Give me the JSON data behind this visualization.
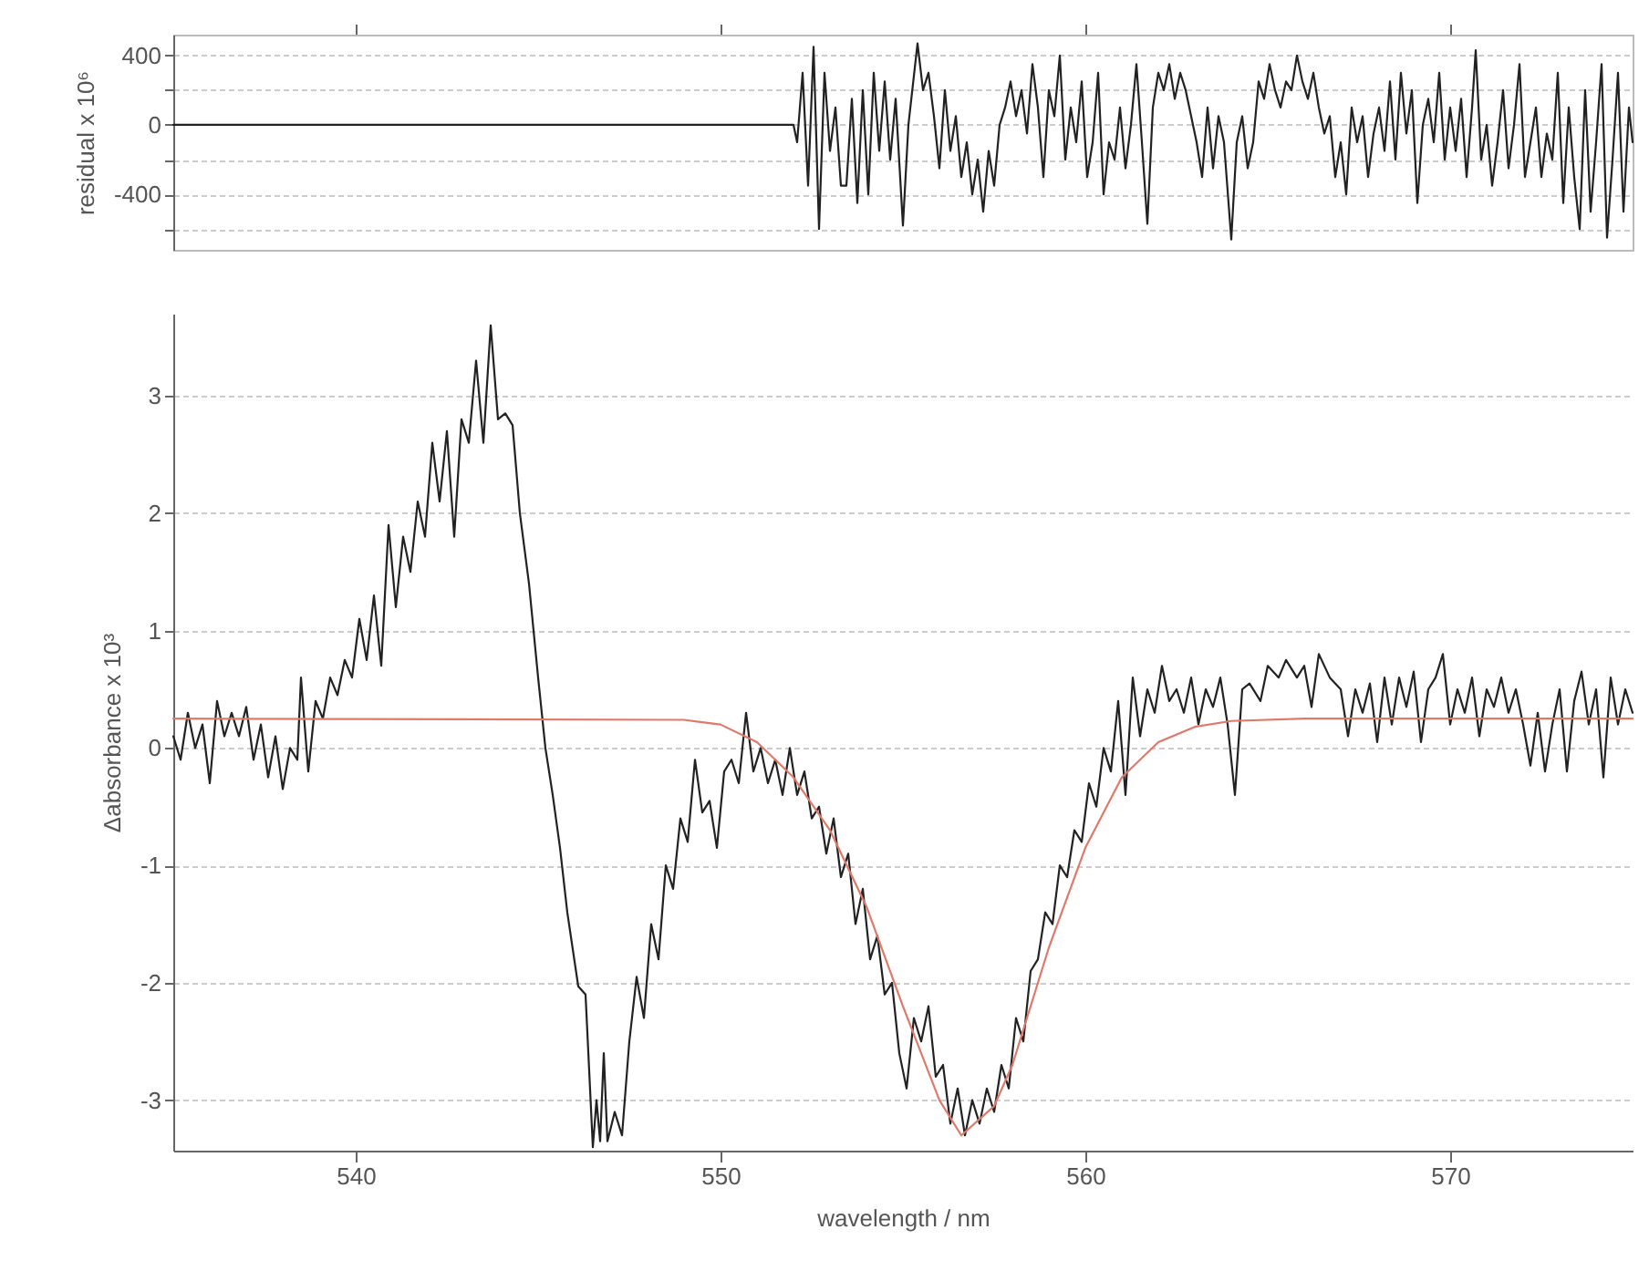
{
  "chart_data": [
    {
      "type": "line",
      "ylabel": "residual x 10⁶",
      "xlim": [
        535,
        575
      ],
      "xticks": [
        540,
        550,
        560,
        570
      ],
      "ylim": [
        -720,
        520
      ],
      "yticks": [
        {
          "value": -600,
          "label": null
        },
        -400,
        {
          "value": -200,
          "label": null
        },
        0,
        {
          "value": 200,
          "label": null
        },
        400
      ],
      "grid": "y",
      "tick_labels": "y",
      "series": [
        {
          "color": "#222222",
          "x": [
            535,
            552.0,
            552.1,
            552.25,
            552.4,
            552.55,
            552.7,
            552.85,
            553.0,
            553.15,
            553.3,
            553.45,
            553.6,
            553.75,
            553.9,
            554.05,
            554.2,
            554.35,
            554.5,
            554.65,
            554.8,
            555.0,
            555.15,
            555.4,
            555.55,
            555.7,
            555.85,
            556.0,
            556.15,
            556.3,
            556.45,
            556.6,
            556.75,
            556.9,
            557.05,
            557.2,
            557.35,
            557.5,
            557.65,
            557.8,
            557.95,
            558.1,
            558.25,
            558.4,
            558.55,
            558.7,
            558.85,
            559.0,
            559.15,
            559.3,
            559.45,
            559.6,
            559.75,
            559.9,
            560.05,
            560.2,
            560.35,
            560.5,
            560.65,
            560.8,
            560.95,
            561.1,
            561.25,
            561.4,
            561.55,
            561.7,
            561.85,
            562.0,
            562.15,
            562.3,
            562.45,
            562.6,
            562.75,
            562.9,
            563.05,
            563.2,
            563.35,
            563.5,
            563.65,
            563.8,
            564.0,
            564.15,
            564.3,
            564.45,
            564.6,
            564.75,
            564.9,
            565.05,
            565.2,
            565.35,
            565.5,
            565.65,
            565.8,
            565.95,
            566.1,
            566.25,
            566.4,
            566.55,
            566.7,
            566.85,
            567.0,
            567.15,
            567.3,
            567.45,
            567.6,
            567.75,
            567.9,
            568.05,
            568.2,
            568.35,
            568.5,
            568.65,
            568.8,
            568.95,
            569.1,
            569.25,
            569.4,
            569.55,
            569.7,
            569.85,
            570.0,
            570.15,
            570.3,
            570.45,
            570.6,
            570.7,
            570.85,
            571.0,
            571.15,
            571.3,
            571.45,
            571.6,
            571.75,
            571.9,
            572.05,
            572.2,
            572.35,
            572.5,
            572.65,
            572.8,
            572.95,
            573.1,
            573.25,
            573.4,
            573.55,
            573.7,
            573.85,
            574.0,
            574.15,
            574.3,
            574.45,
            574.6,
            574.75,
            574.9,
            575.0
          ],
          "values": [
            0,
            0,
            -100,
            300,
            -350,
            450,
            -600,
            300,
            -150,
            100,
            -350,
            -350,
            150,
            -450,
            200,
            -400,
            300,
            -150,
            250,
            -200,
            150,
            -580,
            0,
            470,
            200,
            300,
            50,
            -250,
            200,
            -150,
            50,
            -300,
            -100,
            -400,
            -200,
            -500,
            -150,
            -350,
            0,
            100,
            250,
            50,
            200,
            -50,
            350,
            100,
            -300,
            200,
            50,
            400,
            -200,
            100,
            -100,
            250,
            -300,
            -100,
            300,
            -400,
            -100,
            -200,
            100,
            -250,
            0,
            350,
            -100,
            -570,
            100,
            300,
            200,
            350,
            150,
            300,
            200,
            50,
            -100,
            -300,
            100,
            -250,
            50,
            -100,
            -660,
            -100,
            50,
            -250,
            -100,
            250,
            150,
            350,
            200,
            100,
            250,
            200,
            400,
            250,
            150,
            300,
            100,
            -50,
            50,
            -300,
            -100,
            -400,
            100,
            -100,
            50,
            -300,
            -50,
            100,
            -150,
            250,
            -200,
            300,
            -50,
            200,
            -450,
            0,
            150,
            -100,
            300,
            -200,
            100,
            -150,
            150,
            -300,
            100,
            430,
            -200,
            0,
            -350,
            -100,
            200,
            -250,
            0,
            350,
            -300,
            -100,
            100,
            -300,
            -50,
            -200,
            300,
            -450,
            100,
            -300,
            -600,
            200,
            -500,
            -100,
            350,
            -650,
            -200,
            300,
            -500,
            100,
            -100
          ]
        }
      ]
    },
    {
      "type": "line",
      "xlabel": "wavelength / nm",
      "ylabel": "Δabsorbance x 10³",
      "xlim": [
        535,
        575
      ],
      "xticks": [
        540,
        550,
        560,
        570
      ],
      "ylim": [
        -3.43,
        3.7
      ],
      "yticks": [
        -3,
        -2,
        -1,
        0,
        1,
        2,
        3
      ],
      "grid": "y",
      "series": [
        {
          "color": "#222222",
          "x": [
            535.0,
            535.2,
            535.4,
            535.6,
            535.8,
            536.0,
            536.2,
            536.4,
            536.6,
            536.8,
            537.0,
            537.2,
            537.4,
            537.6,
            537.8,
            538.0,
            538.2,
            538.4,
            538.5,
            538.7,
            538.9,
            539.1,
            539.3,
            539.5,
            539.7,
            539.9,
            540.1,
            540.3,
            540.5,
            540.7,
            540.9,
            541.1,
            541.3,
            541.5,
            541.7,
            541.9,
            542.1,
            542.3,
            542.5,
            542.7,
            542.9,
            543.1,
            543.3,
            543.5,
            543.7,
            543.9,
            544.1,
            544.3,
            544.5,
            544.75,
            545.0,
            545.2,
            545.4,
            545.6,
            545.8,
            546.1,
            546.3,
            546.5,
            546.6,
            546.7,
            546.8,
            546.9,
            547.1,
            547.3,
            547.5,
            547.7,
            547.9,
            548.1,
            548.3,
            548.5,
            548.7,
            548.9,
            549.1,
            549.3,
            549.5,
            549.7,
            549.9,
            550.1,
            550.3,
            550.5,
            550.7,
            550.9,
            551.1,
            551.3,
            551.5,
            551.7,
            551.9,
            552.1,
            552.3,
            552.5,
            552.7,
            552.9,
            553.1,
            553.3,
            553.5,
            553.7,
            553.9,
            554.1,
            554.3,
            554.5,
            554.7,
            554.9,
            555.1,
            555.3,
            555.5,
            555.7,
            555.9,
            556.1,
            556.3,
            556.5,
            556.7,
            556.9,
            557.1,
            557.3,
            557.5,
            557.7,
            557.9,
            558.1,
            558.3,
            558.5,
            558.7,
            558.9,
            559.1,
            559.3,
            559.5,
            559.7,
            559.9,
            560.1,
            560.3,
            560.5,
            560.7,
            560.9,
            561.1,
            561.3,
            561.5,
            561.7,
            561.9,
            562.1,
            562.3,
            562.5,
            562.7,
            562.9,
            563.1,
            563.3,
            563.5,
            563.7,
            563.9,
            564.1,
            564.3,
            564.5,
            564.8,
            565.0,
            565.3,
            565.5,
            565.8,
            566.0,
            566.2,
            566.4,
            566.7,
            567.0,
            567.2,
            567.4,
            567.6,
            567.8,
            568.0,
            568.2,
            568.4,
            568.6,
            568.8,
            569.0,
            569.2,
            569.4,
            569.6,
            569.8,
            570.0,
            570.2,
            570.4,
            570.6,
            570.8,
            571.0,
            571.2,
            571.4,
            571.6,
            571.8,
            572.0,
            572.2,
            572.4,
            572.6,
            572.8,
            573.0,
            573.2,
            573.4,
            573.6,
            573.8,
            574.0,
            574.2,
            574.4,
            574.6,
            574.8,
            575.0
          ],
          "values": [
            0.1,
            -0.1,
            0.3,
            0.0,
            0.2,
            -0.3,
            0.4,
            0.1,
            0.3,
            0.1,
            0.35,
            -0.1,
            0.2,
            -0.25,
            0.1,
            -0.35,
            0.0,
            -0.1,
            0.6,
            -0.2,
            0.4,
            0.25,
            0.6,
            0.45,
            0.75,
            0.6,
            1.1,
            0.75,
            1.3,
            0.7,
            1.9,
            1.2,
            1.8,
            1.5,
            2.1,
            1.8,
            2.6,
            2.1,
            2.7,
            1.8,
            2.8,
            2.6,
            3.3,
            2.6,
            3.6,
            2.8,
            2.85,
            2.75,
            2.0,
            1.4,
            0.6,
            0.0,
            -0.4,
            -0.85,
            -1.4,
            -2.03,
            -2.1,
            -3.4,
            -3.0,
            -3.35,
            -2.6,
            -3.35,
            -3.1,
            -3.3,
            -2.5,
            -1.95,
            -2.3,
            -1.5,
            -1.8,
            -1.0,
            -1.2,
            -0.6,
            -0.8,
            -0.1,
            -0.55,
            -0.45,
            -0.85,
            -0.2,
            -0.1,
            -0.3,
            0.3,
            -0.2,
            0.0,
            -0.3,
            -0.1,
            -0.4,
            0.0,
            -0.4,
            -0.2,
            -0.6,
            -0.5,
            -0.9,
            -0.6,
            -1.1,
            -0.9,
            -1.5,
            -1.2,
            -1.8,
            -1.6,
            -2.1,
            -2.0,
            -2.6,
            -2.9,
            -2.3,
            -2.5,
            -2.2,
            -2.8,
            -2.7,
            -3.2,
            -2.9,
            -3.3,
            -3.0,
            -3.2,
            -2.9,
            -3.1,
            -2.7,
            -2.9,
            -2.3,
            -2.5,
            -1.9,
            -1.8,
            -1.4,
            -1.5,
            -1.0,
            -1.1,
            -0.7,
            -0.8,
            -0.3,
            -0.5,
            0.0,
            -0.2,
            0.4,
            -0.4,
            0.6,
            0.1,
            0.5,
            0.3,
            0.7,
            0.4,
            0.5,
            0.3,
            0.6,
            0.2,
            0.5,
            0.35,
            0.6,
            0.2,
            -0.4,
            0.5,
            0.55,
            0.4,
            0.7,
            0.6,
            0.75,
            0.6,
            0.7,
            0.35,
            0.8,
            0.6,
            0.5,
            0.1,
            0.5,
            0.3,
            0.55,
            0.05,
            0.6,
            0.2,
            0.6,
            0.35,
            0.65,
            0.05,
            0.5,
            0.6,
            0.8,
            0.2,
            0.5,
            0.3,
            0.6,
            0.1,
            0.5,
            0.35,
            0.6,
            0.3,
            0.5,
            0.2,
            -0.15,
            0.3,
            -0.2,
            0.2,
            0.5,
            -0.2,
            0.4,
            0.65,
            0.2,
            0.5,
            -0.25,
            0.6,
            0.2,
            0.5,
            0.3
          ]
        },
        {
          "color": "#e0796a",
          "x": [
            535,
            549,
            550,
            551,
            552,
            553,
            554,
            555,
            556,
            556.6,
            557.5,
            558,
            559,
            560,
            561,
            562,
            563,
            564,
            566,
            575
          ],
          "values": [
            0.25,
            0.24,
            0.2,
            0.05,
            -0.25,
            -0.7,
            -1.35,
            -2.2,
            -3.0,
            -3.3,
            -3.05,
            -2.7,
            -1.7,
            -0.85,
            -0.25,
            0.05,
            0.18,
            0.23,
            0.25,
            0.25
          ]
        }
      ]
    }
  ]
}
